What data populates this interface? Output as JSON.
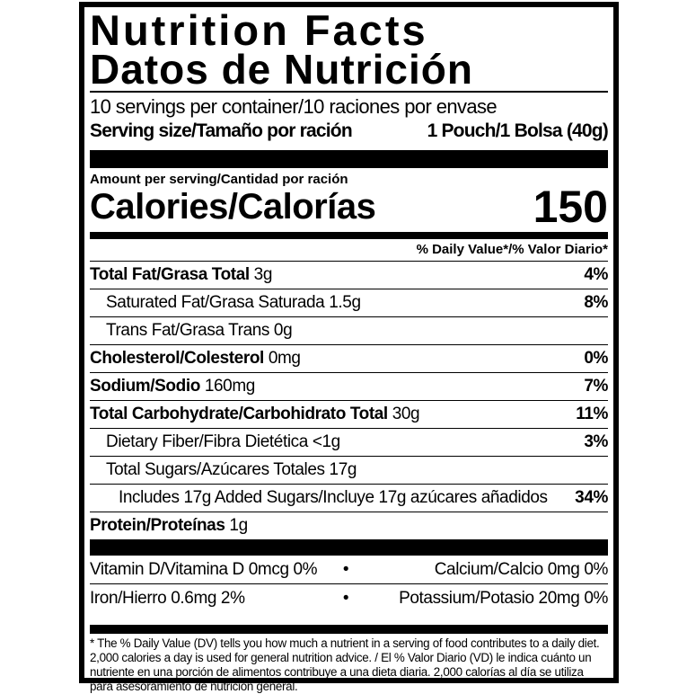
{
  "title_en": "Nutrition Facts",
  "title_es": "Datos de Nutrición",
  "servings_per_container": "10 servings per container/10 raciones por envase",
  "serving_size_label": "Serving size/Tamaño por ración",
  "serving_size_value": "1 Pouch/1 Bolsa (40g)",
  "amount_per_serving": "Amount per serving/Cantidad por ración",
  "calories_label": "Calories/Calorías",
  "calories_value": "150",
  "dv_header": "% Daily Value*/% Valor Diario*",
  "nutrients": [
    {
      "name": "Total Fat/Grasa Total",
      "amount": "3g",
      "dv": "4%"
    },
    {
      "name": "Saturated Fat/Grasa Saturada",
      "amount": "1.5g",
      "dv": "8%"
    },
    {
      "name": "Trans Fat/Grasa Trans",
      "amount": "0g",
      "dv": ""
    },
    {
      "name": "Cholesterol/Colesterol",
      "amount": "0mg",
      "dv": "0%"
    },
    {
      "name": "Sodium/Sodio",
      "amount": "160mg",
      "dv": "7%"
    },
    {
      "name": "Total Carbohydrate/Carbohidrato Total",
      "amount": "30g",
      "dv": "11%"
    },
    {
      "name": "Dietary Fiber/Fibra Dietética",
      "amount": "<1g",
      "dv": "3%"
    },
    {
      "name": "Total Sugars/Azúcares Totales",
      "amount": "17g",
      "dv": ""
    },
    {
      "name": "Includes 17g Added Sugars/Incluye 17g azúcares añadidos",
      "amount": "",
      "dv": "34%"
    },
    {
      "name": "Protein/Proteínas",
      "amount": "1g",
      "dv": ""
    }
  ],
  "micronutrients": [
    {
      "left": "Vitamin D/Vitamina D 0mcg 0%",
      "sep": "•",
      "right": "Calcium/Calcio 0mg 0%"
    },
    {
      "left": "Iron/Hierro 0.6mg 2%",
      "sep": "•",
      "right": "Potassium/Potasio 20mg 0%"
    }
  ],
  "footnote": "* The % Daily Value (DV) tells you how much a nutrient in a serving of food contributes to a daily diet. 2,000 calories a day is used for general nutrition advice. / El % Valor Diario (VD) le indica cuánto un nutriente en una porción de alimentos contribuye a una dieta diaria. 2,000 calorías al día se utiliza para asesoramiento de nutrición general."
}
